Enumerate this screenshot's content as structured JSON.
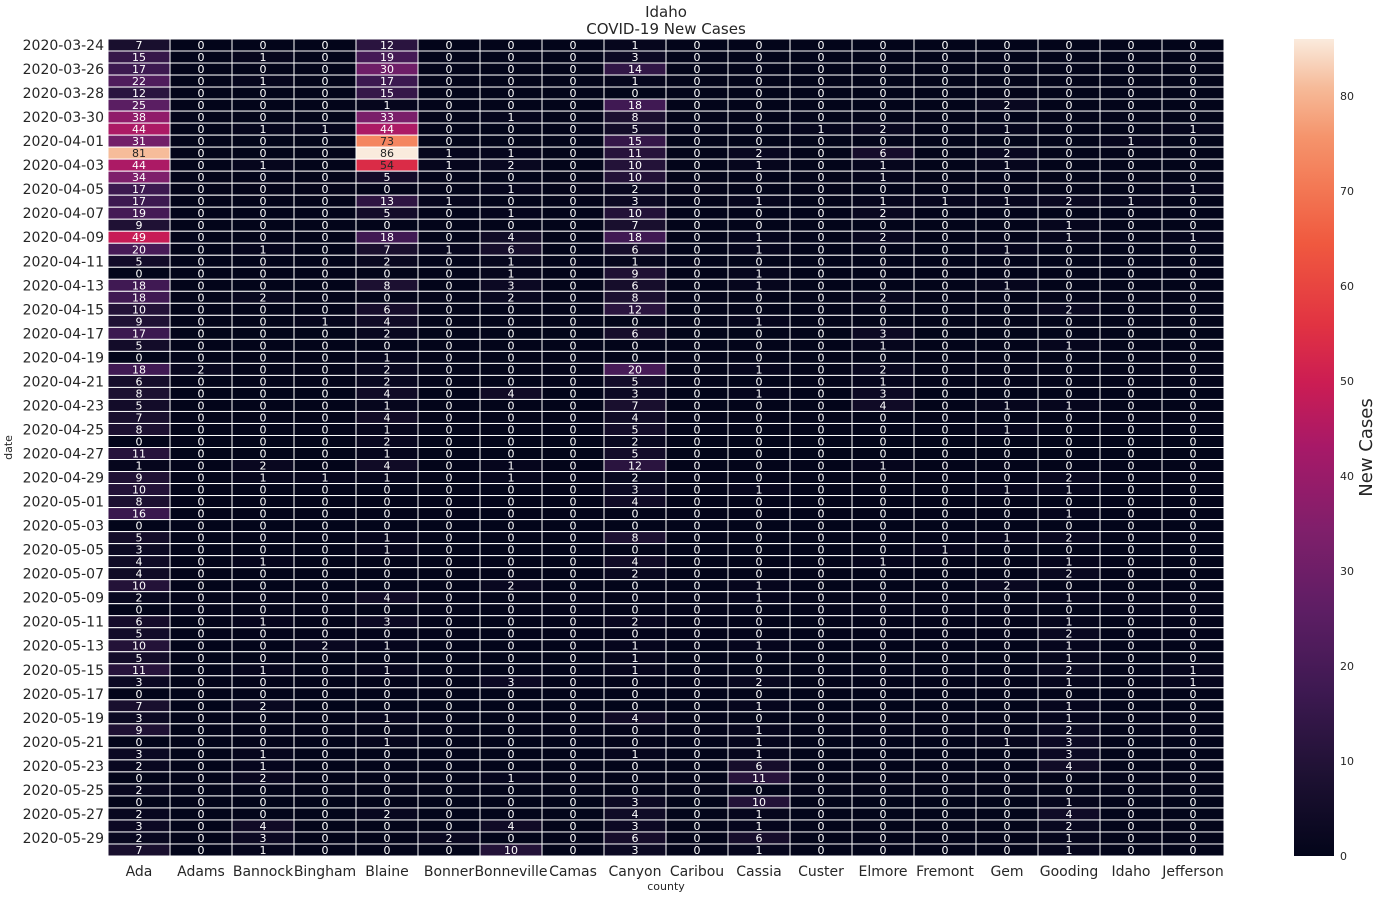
{
  "chart_data": {
    "type": "heatmap",
    "title": "Idaho",
    "subtitle": "COVID-19 New Cases",
    "xlabel": "county",
    "ylabel": "date",
    "colorbar_label": "New Cases",
    "colorbar_range": [
      0,
      86
    ],
    "colorbar_ticks": [
      0,
      10,
      20,
      30,
      40,
      50,
      60,
      70,
      80
    ],
    "colormap": "rocket",
    "grid": true,
    "columns": [
      "Ada",
      "Adams",
      "Bannock",
      "Bingham",
      "Blaine",
      "Bonner",
      "Bonneville",
      "Camas",
      "Canyon",
      "Caribou",
      "Cassia",
      "Custer",
      "Elmore",
      "Fremont",
      "Gem",
      "Gooding",
      "Idaho",
      "Jefferson"
    ],
    "rows": [
      "2020-03-24",
      "2020-03-25",
      "2020-03-26",
      "2020-03-27",
      "2020-03-28",
      "2020-03-29",
      "2020-03-30",
      "2020-03-31",
      "2020-04-01",
      "2020-04-02",
      "2020-04-03",
      "2020-04-04",
      "2020-04-05",
      "2020-04-06",
      "2020-04-07",
      "2020-04-08",
      "2020-04-09",
      "2020-04-10",
      "2020-04-11",
      "2020-04-12",
      "2020-04-13",
      "2020-04-14",
      "2020-04-15",
      "2020-04-16",
      "2020-04-17",
      "2020-04-18",
      "2020-04-19",
      "2020-04-20",
      "2020-04-21",
      "2020-04-22",
      "2020-04-23",
      "2020-04-24",
      "2020-04-25",
      "2020-04-26",
      "2020-04-27",
      "2020-04-28",
      "2020-04-29",
      "2020-04-30",
      "2020-05-01",
      "2020-05-02",
      "2020-05-03",
      "2020-05-04",
      "2020-05-05",
      "2020-05-06",
      "2020-05-07",
      "2020-05-08",
      "2020-05-09",
      "2020-05-10",
      "2020-05-11",
      "2020-05-12",
      "2020-05-13",
      "2020-05-14",
      "2020-05-15",
      "2020-05-16",
      "2020-05-17",
      "2020-05-18",
      "2020-05-19",
      "2020-05-20",
      "2020-05-21",
      "2020-05-22",
      "2020-05-23",
      "2020-05-24",
      "2020-05-25",
      "2020-05-26",
      "2020-05-27",
      "2020-05-28",
      "2020-05-29",
      "2020-05-30"
    ],
    "row_tick_labels": [
      "2020-03-24",
      "2020-03-26",
      "2020-03-28",
      "2020-03-30",
      "2020-04-01",
      "2020-04-03",
      "2020-04-05",
      "2020-04-07",
      "2020-04-09",
      "2020-04-11",
      "2020-04-13",
      "2020-04-15",
      "2020-04-17",
      "2020-04-19",
      "2020-04-21",
      "2020-04-23",
      "2020-04-25",
      "2020-04-27",
      "2020-04-29",
      "2020-05-01",
      "2020-05-03",
      "2020-05-05",
      "2020-05-07",
      "2020-05-09",
      "2020-05-11",
      "2020-05-13",
      "2020-05-15",
      "2020-05-17",
      "2020-05-19",
      "2020-05-21",
      "2020-05-23",
      "2020-05-25",
      "2020-05-27",
      "2020-05-29"
    ],
    "values": [
      [
        7,
        0,
        0,
        0,
        12,
        0,
        0,
        0,
        1,
        0,
        0,
        0,
        0,
        0,
        0,
        0,
        0,
        0
      ],
      [
        15,
        0,
        1,
        0,
        19,
        0,
        0,
        0,
        3,
        0,
        0,
        0,
        0,
        0,
        0,
        0,
        0,
        0
      ],
      [
        17,
        0,
        0,
        0,
        30,
        0,
        0,
        0,
        14,
        0,
        0,
        0,
        0,
        0,
        0,
        0,
        0,
        0
      ],
      [
        22,
        0,
        1,
        0,
        17,
        0,
        0,
        0,
        1,
        0,
        0,
        0,
        0,
        0,
        0,
        0,
        0,
        0
      ],
      [
        12,
        0,
        0,
        0,
        15,
        0,
        0,
        0,
        0,
        0,
        0,
        0,
        0,
        0,
        0,
        0,
        0,
        0
      ],
      [
        25,
        0,
        0,
        0,
        1,
        0,
        0,
        0,
        18,
        0,
        0,
        0,
        0,
        0,
        2,
        0,
        0,
        0
      ],
      [
        38,
        0,
        0,
        0,
        33,
        0,
        1,
        0,
        8,
        0,
        0,
        0,
        0,
        0,
        0,
        0,
        0,
        0
      ],
      [
        44,
        0,
        1,
        1,
        44,
        0,
        0,
        0,
        5,
        0,
        0,
        1,
        2,
        0,
        1,
        0,
        0,
        1
      ],
      [
        31,
        0,
        0,
        0,
        73,
        0,
        0,
        0,
        15,
        0,
        0,
        0,
        0,
        0,
        0,
        0,
        1,
        0
      ],
      [
        81,
        0,
        0,
        0,
        86,
        1,
        1,
        0,
        11,
        0,
        2,
        0,
        6,
        0,
        2,
        0,
        0,
        0
      ],
      [
        44,
        0,
        1,
        0,
        54,
        1,
        2,
        0,
        10,
        0,
        1,
        0,
        1,
        0,
        1,
        0,
        0,
        0
      ],
      [
        34,
        0,
        0,
        0,
        5,
        0,
        0,
        0,
        10,
        0,
        0,
        0,
        1,
        0,
        0,
        0,
        0,
        0
      ],
      [
        17,
        0,
        0,
        0,
        0,
        0,
        1,
        0,
        2,
        0,
        0,
        0,
        0,
        0,
        0,
        0,
        0,
        1
      ],
      [
        17,
        0,
        0,
        0,
        13,
        1,
        0,
        0,
        3,
        0,
        1,
        0,
        1,
        1,
        1,
        2,
        1,
        0
      ],
      [
        19,
        0,
        0,
        0,
        5,
        0,
        1,
        0,
        10,
        0,
        0,
        0,
        2,
        0,
        0,
        0,
        0,
        0
      ],
      [
        9,
        0,
        0,
        0,
        0,
        0,
        0,
        0,
        7,
        0,
        0,
        0,
        0,
        0,
        0,
        1,
        0,
        0
      ],
      [
        49,
        0,
        0,
        0,
        18,
        0,
        4,
        0,
        18,
        0,
        1,
        0,
        2,
        0,
        0,
        1,
        0,
        1
      ],
      [
        20,
        0,
        1,
        0,
        7,
        1,
        6,
        0,
        6,
        0,
        1,
        0,
        0,
        0,
        1,
        0,
        0,
        0
      ],
      [
        5,
        0,
        0,
        0,
        2,
        0,
        1,
        0,
        1,
        0,
        0,
        0,
        0,
        0,
        0,
        0,
        0,
        0
      ],
      [
        0,
        0,
        0,
        0,
        0,
        0,
        1,
        0,
        9,
        0,
        1,
        0,
        0,
        0,
        0,
        0,
        0,
        0
      ],
      [
        18,
        0,
        0,
        0,
        8,
        0,
        3,
        0,
        6,
        0,
        1,
        0,
        0,
        0,
        1,
        0,
        0,
        0
      ],
      [
        18,
        0,
        2,
        0,
        0,
        0,
        2,
        0,
        8,
        0,
        0,
        0,
        2,
        0,
        0,
        0,
        0,
        0
      ],
      [
        10,
        0,
        0,
        0,
        6,
        0,
        0,
        0,
        12,
        0,
        0,
        0,
        0,
        0,
        0,
        2,
        0,
        0
      ],
      [
        9,
        0,
        0,
        1,
        4,
        0,
        0,
        0,
        0,
        0,
        1,
        0,
        0,
        0,
        0,
        0,
        0,
        0
      ],
      [
        17,
        0,
        0,
        0,
        2,
        0,
        0,
        0,
        6,
        0,
        0,
        0,
        3,
        0,
        0,
        0,
        0,
        0
      ],
      [
        5,
        0,
        0,
        0,
        0,
        0,
        0,
        0,
        0,
        0,
        0,
        0,
        1,
        0,
        0,
        1,
        0,
        0
      ],
      [
        0,
        0,
        0,
        0,
        1,
        0,
        0,
        0,
        0,
        0,
        0,
        0,
        0,
        0,
        0,
        0,
        0,
        0
      ],
      [
        18,
        2,
        0,
        0,
        2,
        0,
        0,
        0,
        20,
        0,
        1,
        0,
        2,
        0,
        0,
        0,
        0,
        0
      ],
      [
        6,
        0,
        0,
        0,
        2,
        0,
        0,
        0,
        5,
        0,
        0,
        0,
        1,
        0,
        0,
        0,
        0,
        0
      ],
      [
        8,
        0,
        0,
        0,
        4,
        0,
        4,
        0,
        3,
        0,
        1,
        0,
        3,
        0,
        0,
        0,
        0,
        0
      ],
      [
        5,
        0,
        0,
        0,
        1,
        0,
        0,
        0,
        7,
        0,
        0,
        0,
        4,
        0,
        1,
        1,
        0,
        0
      ],
      [
        7,
        0,
        0,
        0,
        4,
        0,
        0,
        0,
        4,
        0,
        0,
        0,
        0,
        0,
        0,
        0,
        0,
        0
      ],
      [
        8,
        0,
        0,
        0,
        1,
        0,
        0,
        0,
        5,
        0,
        0,
        0,
        0,
        0,
        1,
        0,
        0,
        0
      ],
      [
        0,
        0,
        0,
        0,
        2,
        0,
        0,
        0,
        2,
        0,
        0,
        0,
        0,
        0,
        0,
        0,
        0,
        0
      ],
      [
        11,
        0,
        0,
        0,
        1,
        0,
        0,
        0,
        5,
        0,
        0,
        0,
        0,
        0,
        0,
        0,
        0,
        0
      ],
      [
        1,
        0,
        2,
        0,
        4,
        0,
        1,
        0,
        12,
        0,
        0,
        0,
        1,
        0,
        0,
        0,
        0,
        0
      ],
      [
        9,
        0,
        1,
        1,
        1,
        0,
        1,
        0,
        2,
        0,
        0,
        0,
        0,
        0,
        0,
        2,
        0,
        0
      ],
      [
        10,
        0,
        0,
        0,
        0,
        0,
        0,
        0,
        3,
        0,
        1,
        0,
        0,
        0,
        1,
        1,
        0,
        0
      ],
      [
        8,
        0,
        0,
        0,
        0,
        0,
        0,
        0,
        4,
        0,
        0,
        0,
        0,
        0,
        0,
        0,
        0,
        0
      ],
      [
        16,
        0,
        0,
        0,
        0,
        0,
        0,
        0,
        0,
        0,
        0,
        0,
        0,
        0,
        0,
        1,
        0,
        0
      ],
      [
        0,
        0,
        0,
        0,
        0,
        0,
        0,
        0,
        0,
        0,
        0,
        0,
        0,
        0,
        0,
        0,
        0,
        0
      ],
      [
        5,
        0,
        0,
        0,
        1,
        0,
        0,
        0,
        8,
        0,
        0,
        0,
        0,
        0,
        1,
        2,
        0,
        0
      ],
      [
        3,
        0,
        0,
        0,
        1,
        0,
        0,
        0,
        0,
        0,
        0,
        0,
        0,
        1,
        0,
        0,
        0,
        0
      ],
      [
        4,
        0,
        1,
        0,
        0,
        0,
        0,
        0,
        4,
        0,
        0,
        0,
        1,
        0,
        0,
        1,
        0,
        0
      ],
      [
        4,
        0,
        0,
        0,
        0,
        0,
        0,
        0,
        2,
        0,
        0,
        0,
        0,
        0,
        0,
        2,
        0,
        0
      ],
      [
        10,
        0,
        0,
        0,
        0,
        0,
        2,
        0,
        0,
        0,
        1,
        0,
        0,
        0,
        2,
        0,
        0,
        0
      ],
      [
        2,
        0,
        0,
        0,
        4,
        0,
        0,
        0,
        0,
        0,
        1,
        0,
        0,
        0,
        0,
        1,
        0,
        0
      ],
      [
        0,
        0,
        0,
        0,
        0,
        0,
        0,
        0,
        0,
        0,
        0,
        0,
        0,
        0,
        0,
        0,
        0,
        0
      ],
      [
        6,
        0,
        1,
        0,
        3,
        0,
        0,
        0,
        2,
        0,
        0,
        0,
        0,
        0,
        0,
        1,
        0,
        0
      ],
      [
        5,
        0,
        0,
        0,
        0,
        0,
        0,
        0,
        0,
        0,
        0,
        0,
        0,
        0,
        0,
        2,
        0,
        0
      ],
      [
        10,
        0,
        0,
        2,
        1,
        0,
        0,
        0,
        1,
        0,
        1,
        0,
        0,
        0,
        0,
        1,
        0,
        0
      ],
      [
        5,
        0,
        0,
        0,
        0,
        0,
        0,
        0,
        1,
        0,
        0,
        0,
        0,
        0,
        0,
        1,
        0,
        0
      ],
      [
        11,
        0,
        1,
        0,
        1,
        0,
        0,
        0,
        1,
        0,
        0,
        0,
        0,
        0,
        0,
        2,
        0,
        1
      ],
      [
        3,
        0,
        0,
        0,
        0,
        0,
        3,
        0,
        0,
        0,
        2,
        0,
        0,
        0,
        0,
        1,
        0,
        1
      ],
      [
        0,
        0,
        0,
        0,
        0,
        0,
        0,
        0,
        0,
        0,
        0,
        0,
        0,
        0,
        0,
        0,
        0,
        0
      ],
      [
        7,
        0,
        2,
        0,
        0,
        0,
        0,
        0,
        0,
        0,
        1,
        0,
        0,
        0,
        0,
        1,
        0,
        0
      ],
      [
        3,
        0,
        0,
        0,
        1,
        0,
        0,
        0,
        4,
        0,
        0,
        0,
        0,
        0,
        0,
        1,
        0,
        0
      ],
      [
        9,
        0,
        0,
        0,
        0,
        0,
        0,
        0,
        0,
        0,
        1,
        0,
        0,
        0,
        0,
        2,
        0,
        0
      ],
      [
        0,
        0,
        0,
        0,
        1,
        0,
        0,
        0,
        0,
        0,
        1,
        0,
        0,
        0,
        1,
        3,
        0,
        0
      ],
      [
        3,
        0,
        1,
        0,
        0,
        0,
        0,
        0,
        1,
        0,
        1,
        0,
        0,
        0,
        0,
        3,
        0,
        0
      ],
      [
        2,
        0,
        1,
        0,
        0,
        0,
        0,
        0,
        0,
        0,
        6,
        0,
        0,
        0,
        0,
        4,
        0,
        0
      ],
      [
        0,
        0,
        2,
        0,
        0,
        0,
        1,
        0,
        0,
        0,
        11,
        0,
        0,
        0,
        0,
        0,
        0,
        0
      ],
      [
        2,
        0,
        0,
        0,
        0,
        0,
        0,
        0,
        0,
        0,
        0,
        0,
        0,
        0,
        0,
        0,
        0,
        0
      ],
      [
        0,
        0,
        0,
        0,
        0,
        0,
        0,
        0,
        3,
        0,
        10,
        0,
        0,
        0,
        0,
        1,
        0,
        0
      ],
      [
        2,
        0,
        0,
        0,
        2,
        0,
        0,
        0,
        4,
        0,
        1,
        0,
        0,
        0,
        0,
        4,
        0,
        0
      ],
      [
        3,
        0,
        4,
        0,
        0,
        0,
        4,
        0,
        3,
        0,
        1,
        0,
        0,
        0,
        0,
        2,
        0,
        0
      ],
      [
        2,
        0,
        3,
        0,
        0,
        2,
        0,
        0,
        6,
        0,
        6,
        0,
        0,
        0,
        0,
        1,
        0,
        0
      ],
      [
        7,
        0,
        1,
        0,
        0,
        0,
        10,
        0,
        3,
        0,
        1,
        0,
        0,
        0,
        0,
        1,
        0,
        0
      ]
    ]
  }
}
